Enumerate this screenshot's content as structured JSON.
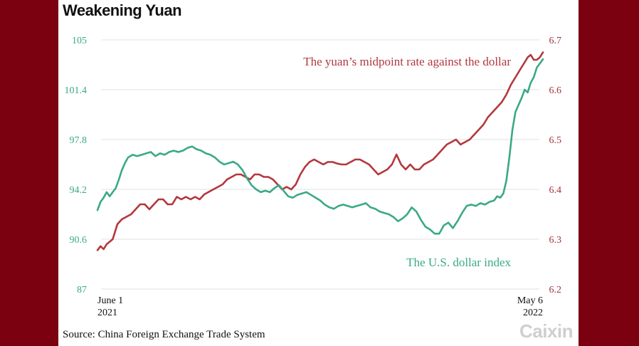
{
  "title": "Weakening Yuan",
  "source": "Source: China Foreign Exchange Trade System",
  "logo": "Caixin",
  "colors": {
    "background": "#7b0010",
    "yuan": "#b3373c",
    "usd_index": "#3aa987",
    "grid": "#e2e2e2"
  },
  "chart_data": {
    "type": "line",
    "title": "Weakening Yuan",
    "x_range": [
      "2021-06-01",
      "2022-05-06"
    ],
    "x_tick_labels": [
      {
        "line1": "June 1",
        "line2": "2021"
      },
      {
        "line1": "May 6",
        "line2": "2022"
      }
    ],
    "y_left": {
      "range": [
        87,
        105
      ],
      "ticks": [
        "105",
        "101.4",
        "97.8",
        "94.2",
        "90.6",
        "87"
      ]
    },
    "y_right": {
      "range": [
        6.2,
        6.7
      ],
      "ticks": [
        "6.7",
        "6.6",
        "6.5",
        "6.4",
        "6.3",
        "6.2"
      ]
    },
    "grid": true,
    "series": [
      {
        "name": "The yuan’s midpoint rate against the dollar",
        "axis": "right",
        "values": [
          [
            0,
            6.278
          ],
          [
            2,
            6.286
          ],
          [
            4,
            6.28
          ],
          [
            6,
            6.29
          ],
          [
            8,
            6.295
          ],
          [
            10,
            6.3
          ],
          [
            11,
            6.31
          ],
          [
            13,
            6.33
          ],
          [
            16,
            6.34
          ],
          [
            19,
            6.345
          ],
          [
            22,
            6.35
          ],
          [
            25,
            6.36
          ],
          [
            28,
            6.37
          ],
          [
            31,
            6.37
          ],
          [
            34,
            6.36
          ],
          [
            37,
            6.37
          ],
          [
            40,
            6.38
          ],
          [
            43,
            6.38
          ],
          [
            46,
            6.37
          ],
          [
            49,
            6.37
          ],
          [
            52,
            6.385
          ],
          [
            55,
            6.38
          ],
          [
            58,
            6.385
          ],
          [
            61,
            6.38
          ],
          [
            64,
            6.385
          ],
          [
            67,
            6.38
          ],
          [
            70,
            6.39
          ],
          [
            73,
            6.395
          ],
          [
            76,
            6.4
          ],
          [
            79,
            6.405
          ],
          [
            82,
            6.41
          ],
          [
            85,
            6.42
          ],
          [
            88,
            6.425
          ],
          [
            91,
            6.43
          ],
          [
            94,
            6.43
          ],
          [
            97,
            6.425
          ],
          [
            100,
            6.42
          ],
          [
            103,
            6.43
          ],
          [
            106,
            6.43
          ],
          [
            109,
            6.425
          ],
          [
            112,
            6.425
          ],
          [
            115,
            6.42
          ],
          [
            118,
            6.41
          ],
          [
            121,
            6.4
          ],
          [
            124,
            6.405
          ],
          [
            127,
            6.4
          ],
          [
            130,
            6.41
          ],
          [
            133,
            6.43
          ],
          [
            136,
            6.445
          ],
          [
            139,
            6.455
          ],
          [
            142,
            6.46
          ],
          [
            145,
            6.455
          ],
          [
            148,
            6.45
          ],
          [
            151,
            6.455
          ],
          [
            154,
            6.455
          ],
          [
            157,
            6.452
          ],
          [
            160,
            6.45
          ],
          [
            163,
            6.45
          ],
          [
            166,
            6.455
          ],
          [
            169,
            6.46
          ],
          [
            172,
            6.46
          ],
          [
            175,
            6.455
          ],
          [
            178,
            6.45
          ],
          [
            181,
            6.44
          ],
          [
            184,
            6.43
          ],
          [
            187,
            6.435
          ],
          [
            190,
            6.44
          ],
          [
            193,
            6.45
          ],
          [
            196,
            6.47
          ],
          [
            199,
            6.45
          ],
          [
            202,
            6.44
          ],
          [
            205,
            6.45
          ],
          [
            208,
            6.44
          ],
          [
            211,
            6.44
          ],
          [
            214,
            6.45
          ],
          [
            217,
            6.455
          ],
          [
            220,
            6.46
          ],
          [
            223,
            6.47
          ],
          [
            226,
            6.48
          ],
          [
            229,
            6.49
          ],
          [
            232,
            6.495
          ],
          [
            235,
            6.5
          ],
          [
            238,
            6.49
          ],
          [
            241,
            6.495
          ],
          [
            244,
            6.5
          ],
          [
            247,
            6.51
          ],
          [
            250,
            6.52
          ],
          [
            253,
            6.53
          ],
          [
            256,
            6.545
          ],
          [
            259,
            6.555
          ],
          [
            262,
            6.565
          ],
          [
            265,
            6.575
          ],
          [
            268,
            6.59
          ],
          [
            271,
            6.61
          ],
          [
            274,
            6.625
          ],
          [
            277,
            6.64
          ],
          [
            280,
            6.655
          ],
          [
            282,
            6.665
          ],
          [
            284,
            6.67
          ],
          [
            286,
            6.66
          ],
          [
            288,
            6.66
          ],
          [
            290,
            6.665
          ],
          [
            292,
            6.675
          ]
        ]
      },
      {
        "name": "The U.S. dollar index",
        "axis": "left",
        "values": [
          [
            0,
            92.7
          ],
          [
            2,
            93.3
          ],
          [
            4,
            93.6
          ],
          [
            6,
            94.0
          ],
          [
            8,
            93.7
          ],
          [
            10,
            94.0
          ],
          [
            12,
            94.3
          ],
          [
            14,
            94.9
          ],
          [
            16,
            95.6
          ],
          [
            18,
            96.1
          ],
          [
            20,
            96.5
          ],
          [
            23,
            96.7
          ],
          [
            26,
            96.6
          ],
          [
            29,
            96.7
          ],
          [
            32,
            96.8
          ],
          [
            35,
            96.9
          ],
          [
            38,
            96.6
          ],
          [
            41,
            96.8
          ],
          [
            44,
            96.7
          ],
          [
            47,
            96.9
          ],
          [
            50,
            97.0
          ],
          [
            53,
            96.9
          ],
          [
            56,
            97.0
          ],
          [
            59,
            97.2
          ],
          [
            62,
            97.3
          ],
          [
            65,
            97.1
          ],
          [
            68,
            97.0
          ],
          [
            71,
            96.8
          ],
          [
            74,
            96.7
          ],
          [
            77,
            96.5
          ],
          [
            80,
            96.2
          ],
          [
            83,
            96.0
          ],
          [
            86,
            96.1
          ],
          [
            89,
            96.2
          ],
          [
            92,
            96.0
          ],
          [
            95,
            95.6
          ],
          [
            98,
            95.0
          ],
          [
            101,
            94.5
          ],
          [
            104,
            94.2
          ],
          [
            107,
            94.0
          ],
          [
            110,
            94.1
          ],
          [
            113,
            94.0
          ],
          [
            116,
            94.3
          ],
          [
            119,
            94.5
          ],
          [
            122,
            94.1
          ],
          [
            125,
            93.7
          ],
          [
            128,
            93.6
          ],
          [
            131,
            93.8
          ],
          [
            134,
            93.9
          ],
          [
            137,
            94.0
          ],
          [
            140,
            93.8
          ],
          [
            143,
            93.6
          ],
          [
            146,
            93.4
          ],
          [
            149,
            93.1
          ],
          [
            152,
            92.9
          ],
          [
            155,
            92.8
          ],
          [
            158,
            93.0
          ],
          [
            161,
            93.1
          ],
          [
            164,
            93.0
          ],
          [
            167,
            92.9
          ],
          [
            170,
            93.0
          ],
          [
            173,
            93.1
          ],
          [
            176,
            93.2
          ],
          [
            179,
            92.9
          ],
          [
            182,
            92.8
          ],
          [
            185,
            92.6
          ],
          [
            188,
            92.5
          ],
          [
            191,
            92.4
          ],
          [
            194,
            92.2
          ],
          [
            197,
            91.9
          ],
          [
            200,
            92.1
          ],
          [
            203,
            92.4
          ],
          [
            206,
            92.9
          ],
          [
            209,
            92.6
          ],
          [
            212,
            92.0
          ],
          [
            215,
            91.5
          ],
          [
            218,
            91.3
          ],
          [
            221,
            91.0
          ],
          [
            224,
            91.0
          ],
          [
            227,
            91.6
          ],
          [
            230,
            91.8
          ],
          [
            233,
            91.4
          ],
          [
            236,
            91.9
          ],
          [
            239,
            92.5
          ],
          [
            242,
            93.0
          ],
          [
            245,
            93.1
          ],
          [
            248,
            93.0
          ],
          [
            251,
            93.2
          ],
          [
            254,
            93.1
          ],
          [
            257,
            93.3
          ],
          [
            260,
            93.4
          ],
          [
            262,
            93.7
          ],
          [
            264,
            93.6
          ],
          [
            266,
            93.9
          ],
          [
            268,
            94.8
          ],
          [
            270,
            96.5
          ],
          [
            272,
            98.5
          ],
          [
            274,
            99.8
          ],
          [
            276,
            100.3
          ],
          [
            278,
            100.8
          ],
          [
            280,
            101.4
          ],
          [
            282,
            101.2
          ],
          [
            284,
            101.9
          ],
          [
            286,
            102.3
          ],
          [
            288,
            103.0
          ],
          [
            290,
            103.3
          ],
          [
            292,
            103.6
          ]
        ]
      }
    ]
  }
}
